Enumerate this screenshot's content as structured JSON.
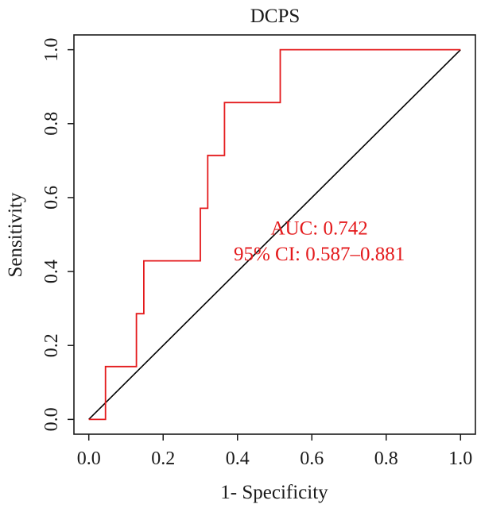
{
  "chart_data": {
    "type": "line",
    "title": "DCPS",
    "xlabel": "1- Specificity",
    "ylabel": "Sensitivity",
    "xlim": [
      -0.04,
      1.04
    ],
    "ylim": [
      -0.04,
      1.04
    ],
    "xticks": [
      "0.0",
      "0.2",
      "0.4",
      "0.6",
      "0.8",
      "1.0"
    ],
    "yticks": [
      "0.0",
      "0.2",
      "0.4",
      "0.6",
      "0.8",
      "1.0"
    ],
    "grid": false,
    "series": [
      {
        "color": "#e41a1c",
        "x": [
          0.0,
          0.045,
          0.045,
          0.128,
          0.128,
          0.148,
          0.148,
          0.3,
          0.3,
          0.32,
          0.32,
          0.365,
          0.365,
          0.515,
          0.515,
          1.0
        ],
        "y": [
          0.0,
          0.0,
          0.143,
          0.143,
          0.286,
          0.286,
          0.429,
          0.429,
          0.571,
          0.571,
          0.714,
          0.714,
          0.857,
          0.857,
          1.0,
          1.0
        ]
      }
    ],
    "reference_line": {
      "color": "#000000",
      "x": [
        0.0,
        1.0
      ],
      "y": [
        0.0,
        1.0
      ]
    },
    "annotations": [
      {
        "text": "AUC: 0.742",
        "x": 0.62,
        "y": 0.5,
        "color": "#e41a1c"
      },
      {
        "text": "95% CI: 0.587–0.881",
        "x": 0.62,
        "y": 0.43,
        "color": "#e41a1c"
      }
    ]
  }
}
